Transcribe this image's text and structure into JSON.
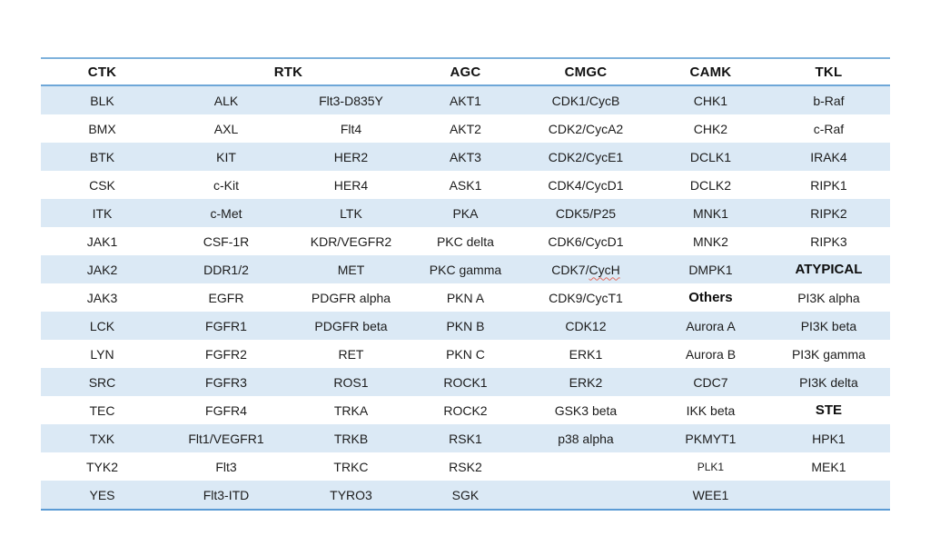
{
  "page": {
    "background_color": "#ffffff"
  },
  "table": {
    "name": "kinase-family-table",
    "colors": {
      "stripe_row": "#dbe9f5",
      "plain_row": "#ffffff",
      "top_rule": "#7fb2dc",
      "header_rule": "#6ea7d8",
      "bottom_rule": "#5b9bd5",
      "text": "#1c1c1c",
      "spellcheck_underline": "#e26b5e"
    },
    "header": [
      {
        "label": "CTK",
        "span": 1
      },
      {
        "label": "RTK",
        "span": 2
      },
      {
        "label": "AGC",
        "span": 1
      },
      {
        "label": "CMGC",
        "span": 1
      },
      {
        "label": "CAMK",
        "span": 1
      },
      {
        "label": "TKL",
        "span": 1
      }
    ],
    "rows": [
      [
        "BLK",
        "ALK",
        "Flt3-D835Y",
        "AKT1",
        "CDK1/CycB",
        "CHK1",
        "b-Raf"
      ],
      [
        "BMX",
        "AXL",
        "Flt4",
        "AKT2",
        "CDK2/CycA2",
        "CHK2",
        "c-Raf"
      ],
      [
        "BTK",
        "KIT",
        "HER2",
        "AKT3",
        "CDK2/CycE1",
        "DCLK1",
        "IRAK4"
      ],
      [
        "CSK",
        "c-Kit",
        "HER4",
        "ASK1",
        "CDK4/CycD1",
        "DCLK2",
        "RIPK1"
      ],
      [
        "ITK",
        "c-Met",
        "LTK",
        "PKA",
        "CDK5/P25",
        "MNK1",
        "RIPK2"
      ],
      [
        "JAK1",
        "CSF-1R",
        "KDR/VEGFR2",
        "PKC delta",
        "CDK6/CycD1",
        "MNK2",
        "RIPK3"
      ],
      [
        "JAK2",
        "DDR1/2",
        "MET",
        "PKC gamma",
        {
          "text": "CDK7/CycH",
          "spellcheck_split": [
            "CDK7/",
            "CycH"
          ]
        },
        "DMPK1",
        {
          "text": "ATYPICAL",
          "bold": true
        }
      ],
      [
        "JAK3",
        "EGFR",
        "PDGFR alpha",
        "PKN A",
        "CDK9/CycT1",
        {
          "text": "Others",
          "bold": true
        },
        "PI3K alpha"
      ],
      [
        "LCK",
        "FGFR1",
        "PDGFR beta",
        "PKN B",
        "CDK12",
        "Aurora A",
        "PI3K beta"
      ],
      [
        "LYN",
        "FGFR2",
        "RET",
        "PKN C",
        "ERK1",
        "Aurora B",
        "PI3K gamma"
      ],
      [
        "SRC",
        "FGFR3",
        "ROS1",
        "ROCK1",
        "ERK2",
        "CDC7",
        "PI3K delta"
      ],
      [
        "TEC",
        "FGFR4",
        "TRKA",
        "ROCK2",
        "GSK3 beta",
        "IKK beta",
        {
          "text": "STE",
          "bold": true
        }
      ],
      [
        "TXK",
        "Flt1/VEGFR1",
        "TRKB",
        "RSK1",
        "p38 alpha",
        "PKMYT1",
        "HPK1"
      ],
      [
        "TYK2",
        "Flt3",
        "TRKC",
        "RSK2",
        "",
        {
          "text": "PLK1",
          "small": true
        },
        "MEK1"
      ],
      [
        "YES",
        "Flt3-ITD",
        "TYRO3",
        "SGK",
        "",
        "WEE1",
        ""
      ]
    ]
  }
}
